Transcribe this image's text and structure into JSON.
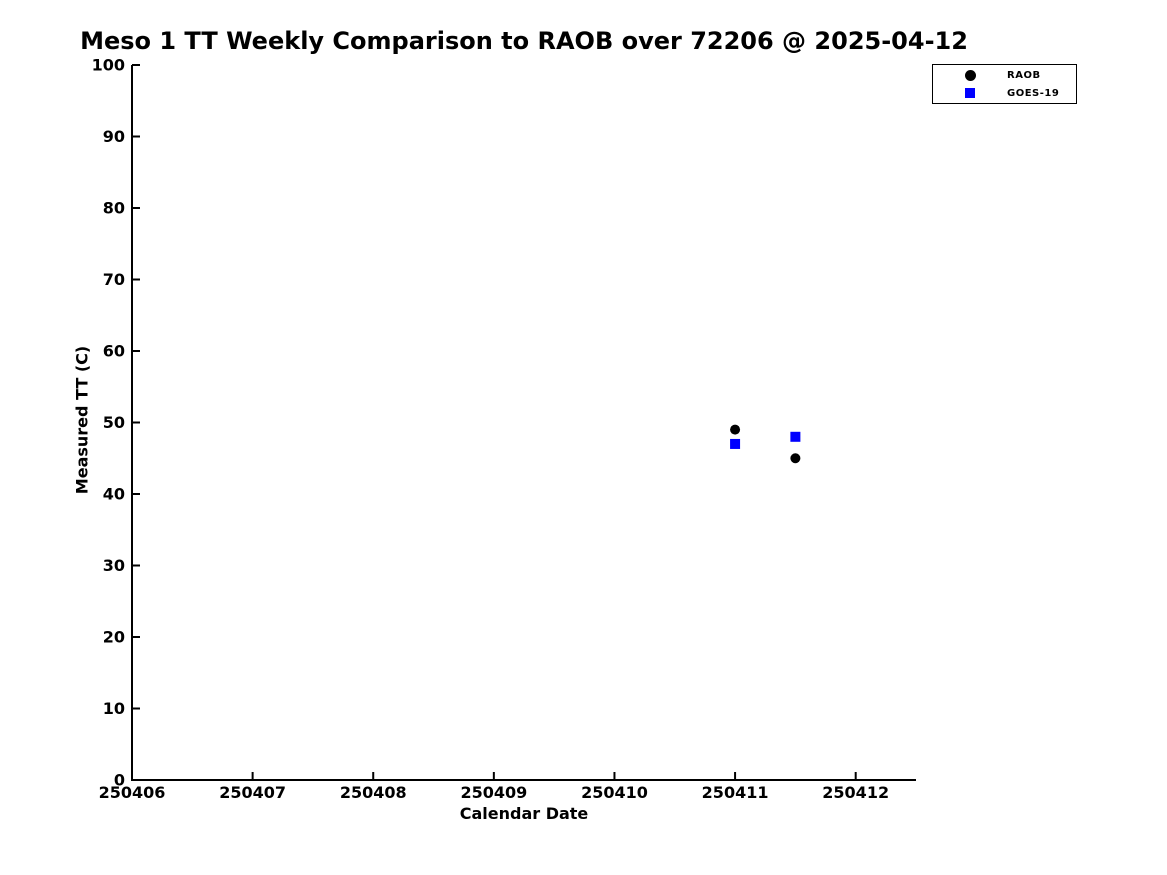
{
  "title": "Meso 1 TT Weekly Comparison to RAOB over 72206 @ 2025-04-12",
  "colors": {
    "background": "#ffffff",
    "axis": "#000000",
    "raob": "#000000",
    "goes19": "#0000ff"
  },
  "legend": {
    "entries": [
      {
        "label": "RAOB",
        "marker": "circle-icon",
        "color": "#000000"
      },
      {
        "label": "GOES-19",
        "marker": "square-icon",
        "color": "#0000ff"
      }
    ]
  },
  "chart_data": {
    "type": "scatter",
    "title": "Meso 1 TT Weekly Comparison to RAOB over 72206 @ 2025-04-12",
    "xlabel": "Calendar Date",
    "ylabel": "Measured TT (C)",
    "xlim": [
      250406,
      250412.5
    ],
    "ylim": [
      0,
      100
    ],
    "xticks": [
      250406,
      250407,
      250408,
      250409,
      250410,
      250411,
      250412
    ],
    "yticks": [
      0,
      10,
      20,
      30,
      40,
      50,
      60,
      70,
      80,
      90,
      100
    ],
    "grid": false,
    "legend_position": "outside-top-right",
    "series": [
      {
        "name": "RAOB",
        "marker": "circle",
        "color": "#000000",
        "points": [
          {
            "x": 250411.0,
            "y": 49
          },
          {
            "x": 250411.5,
            "y": 45
          }
        ]
      },
      {
        "name": "GOES-19",
        "marker": "square",
        "color": "#0000ff",
        "points": [
          {
            "x": 250411.0,
            "y": 47
          },
          {
            "x": 250411.5,
            "y": 48
          }
        ]
      }
    ]
  }
}
